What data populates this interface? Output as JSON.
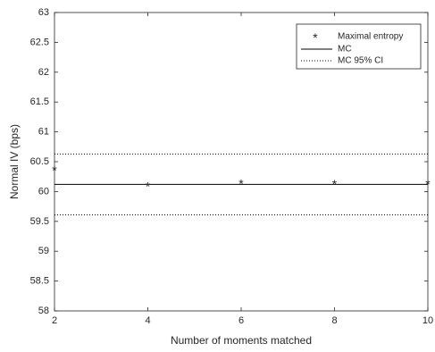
{
  "chart_data": {
    "type": "scatter",
    "title": "",
    "xlabel": "Number of moments matched",
    "ylabel": "Normal IV (bps)",
    "xlim": [
      2,
      10
    ],
    "ylim": [
      58,
      63
    ],
    "xticks": [
      2,
      4,
      6,
      8,
      10
    ],
    "yticks": [
      58,
      58.5,
      59,
      59.5,
      60,
      60.5,
      61,
      61.5,
      62,
      62.5,
      63
    ],
    "grid": false,
    "legend_position": "top-right",
    "series": [
      {
        "name": "Maximal entropy",
        "type": "scatter",
        "marker": "*",
        "x": [
          2,
          4,
          6,
          8,
          10
        ],
        "y": [
          60.37,
          60.1,
          60.15,
          60.14,
          60.14
        ]
      },
      {
        "name": "MC",
        "type": "hline",
        "style": "solid",
        "y": 60.12
      },
      {
        "name": "MC 95% CI",
        "type": "hline",
        "style": "dotted",
        "y": [
          59.61,
          60.63
        ]
      }
    ],
    "colors": {
      "axis": "#262626",
      "series": "#000000"
    }
  }
}
